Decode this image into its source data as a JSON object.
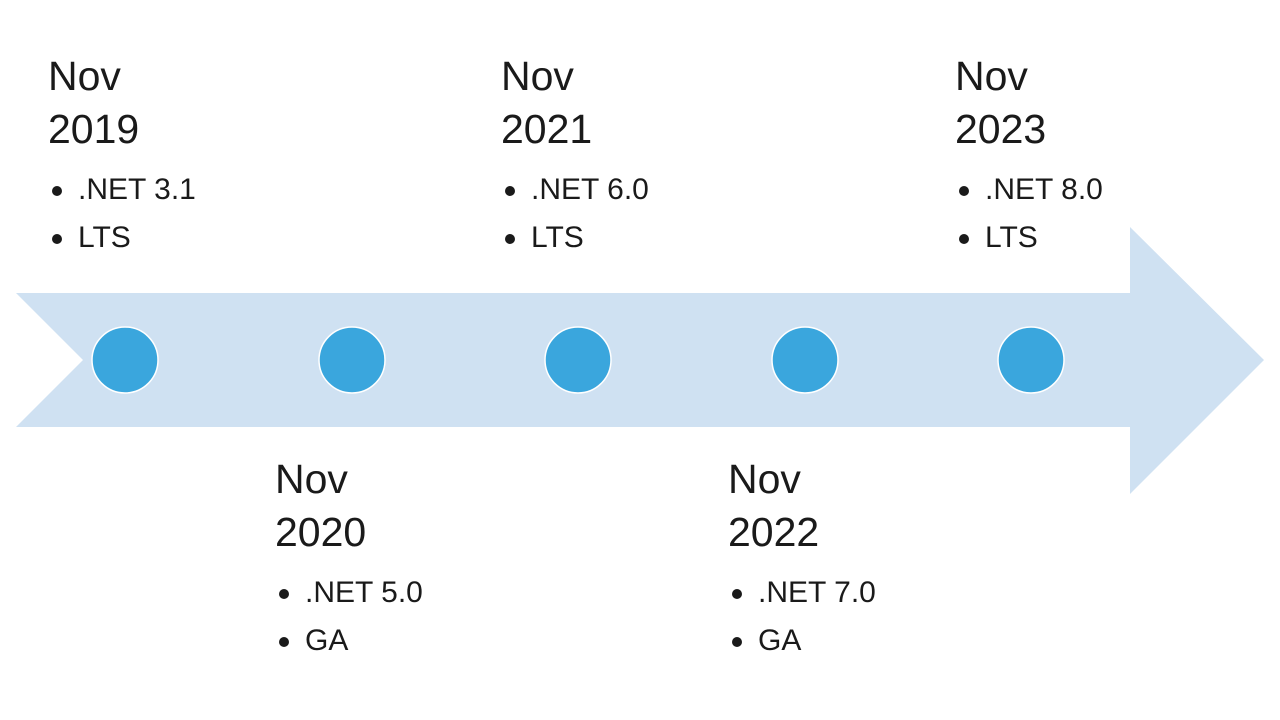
{
  "colors": {
    "arrow_fill": "#cfe1f2",
    "dot_fill": "#3aa6dd",
    "dot_stroke": "#ffffff",
    "text": "#1a1a1a"
  },
  "milestones": [
    {
      "month": "Nov",
      "year": "2019",
      "version": ".NET 3.1",
      "type": "LTS"
    },
    {
      "month": "Nov",
      "year": "2020",
      "version": ".NET 5.0",
      "type": "GA"
    },
    {
      "month": "Nov",
      "year": "2021",
      "version": ".NET 6.0",
      "type": "LTS"
    },
    {
      "month": "Nov",
      "year": "2022",
      "version": ".NET 7.0",
      "type": "GA"
    },
    {
      "month": "Nov",
      "year": "2023",
      "version": ".NET 8.0",
      "type": "LTS"
    }
  ]
}
